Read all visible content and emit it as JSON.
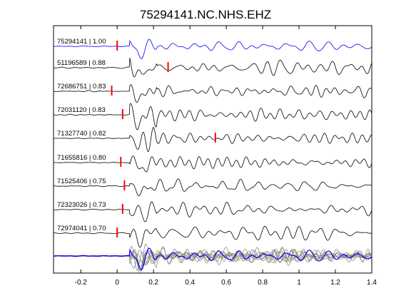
{
  "chart_data": {
    "type": "line",
    "title": "75294141.NC.NHS.EHZ",
    "xlabel": "",
    "ylabel": "",
    "xlim": [
      -0.35,
      1.4
    ],
    "x_ticks": [
      -0.2,
      0,
      0.2,
      0.4,
      0.6,
      0.8,
      1,
      1.2,
      1.4
    ],
    "x_tick_labels": [
      "-0.2",
      "0",
      "0.2",
      "0.4",
      "0.6",
      "0.8",
      "1",
      "1.2",
      "1.4"
    ],
    "grid": false,
    "colors": {
      "reference": "#0000ff",
      "trace": "#000000",
      "pick": "#ff0000",
      "stack_gray": "#808080",
      "stack_yellow": "#c8b400"
    },
    "series": [
      {
        "name": "75294141 | 1.00",
        "correlation": 1.0,
        "pick_time": 0.0,
        "color": "#0000ff"
      },
      {
        "name": "51196589 | 0.88",
        "correlation": 0.88,
        "pick_time": 0.28,
        "color": "#000000"
      },
      {
        "name": "72686751 | 0.83",
        "correlation": 0.83,
        "pick_time": -0.03,
        "color": "#000000"
      },
      {
        "name": "72031120 | 0.83",
        "correlation": 0.83,
        "pick_time": 0.03,
        "color": "#000000"
      },
      {
        "name": "71327740 | 0.82",
        "correlation": 0.82,
        "pick_time": 0.54,
        "color": "#000000"
      },
      {
        "name": "71655816 | 0.80",
        "correlation": 0.8,
        "pick_time": 0.02,
        "color": "#000000"
      },
      {
        "name": "71525406 | 0.75",
        "correlation": 0.75,
        "pick_time": 0.04,
        "color": "#000000"
      },
      {
        "name": "72323026 | 0.73",
        "correlation": 0.73,
        "pick_time": 0.03,
        "color": "#000000"
      },
      {
        "name": "72974041 | 0.70",
        "correlation": 0.7,
        "pick_time": 0.0,
        "color": "#000000"
      }
    ],
    "overlay_stack": {
      "trace_count": 9
    }
  }
}
